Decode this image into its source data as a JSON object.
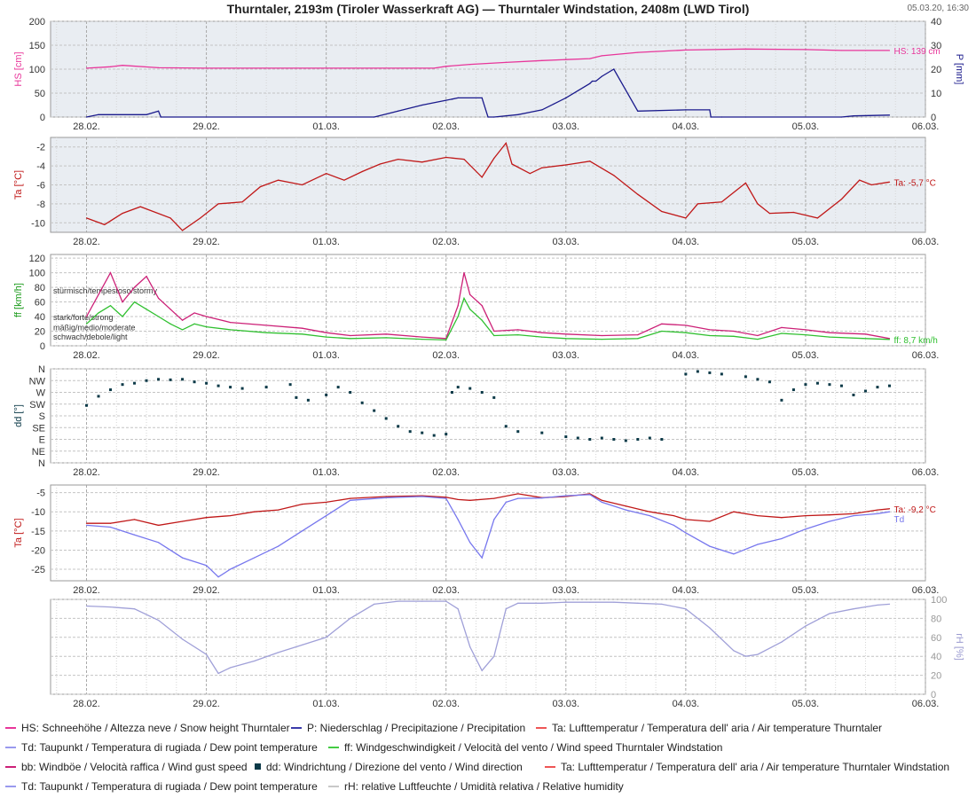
{
  "header": {
    "title": "Thurntaler, 2193m (Tiroler Wasserkraft AG) — Thurntaler Windstation, 2408m (LWD Tirol)",
    "timestamp": "05.03.20, 16:30"
  },
  "colors": {
    "hs": "#e8359a",
    "p": "#1a1a8c",
    "ta": "#c01818",
    "td": "#7777ee",
    "ff": "#30c030",
    "bb": "#cc2077",
    "dd": "#0c3a48",
    "rh": "#a0a0d8",
    "panel_bg": "#e9edf2",
    "grid": "#b8b8b8",
    "border": "#999999"
  },
  "x_axis": {
    "ticks": [
      "28.02.",
      "29.02.",
      "01.03.",
      "02.03.",
      "03.03.",
      "04.03.",
      "05.03.",
      "06.03."
    ]
  },
  "legend": [
    {
      "label": "HS: Schneehöhe / Altezza neve / Snow height  Thurntaler",
      "color": "#e8359a",
      "marker": "line"
    },
    {
      "label": "P: Niederschlag / Precipitazione / Precipitation",
      "color": "#3a3aaa",
      "marker": "line"
    },
    {
      "label": "Ta: Lufttemperatur / Temperatura dell' aria / Air temperature  Thurntaler",
      "color": "#ee5555",
      "marker": "line"
    },
    {
      "label": "Td: Taupunkt / Temperatura di rugiada / Dew point temperature",
      "color": "#9999ee",
      "marker": "line"
    },
    {
      "label": "ff: Windgeschwindigkeit / Velocità del vento / Wind speed  Thurntaler Windstation",
      "color": "#44cc44",
      "marker": "line"
    },
    {
      "label": "bb: Windböe / Velocità raffica / Wind gust speed",
      "color": "#cc2077",
      "marker": "line"
    },
    {
      "label": "dd: Windrichtung / Direzione del vento / Wind direction",
      "color": "#0c3a48",
      "marker": "square"
    },
    {
      "label": "Ta: Lufttemperatur / Temperatura dell' aria / Air temperature  Thurntaler Windstation",
      "color": "#ee5555",
      "marker": "line"
    },
    {
      "label": "Td: Taupunkt / Temperatura di rugiada / Dew point temperature",
      "color": "#9999ee",
      "marker": "line"
    },
    {
      "label": "rH: relative Luftfeuchte / Umidità relativa / Relative humidity",
      "color": "#c8c8c8",
      "marker": "line"
    }
  ],
  "chart_data": [
    {
      "type": "line",
      "panel": "snow-precip",
      "ylabel": "HS [cm]",
      "ylim": [
        0,
        200
      ],
      "yticks": [
        0,
        50,
        100,
        150,
        200
      ],
      "y2label": "P [mm]",
      "y2lim": [
        0,
        40
      ],
      "y2ticks": [
        0,
        10,
        20,
        30,
        40
      ],
      "series": [
        {
          "name": "HS",
          "axis": "left",
          "end_label": "HS: 139 cm",
          "x": [
            0.0,
            0.2,
            0.3,
            0.6,
            1.0,
            1.5,
            2.0,
            2.5,
            2.9,
            3.0,
            3.2,
            3.5,
            3.8,
            4.0,
            4.2,
            4.3,
            4.6,
            5.0,
            5.5,
            6.0,
            6.3,
            6.7
          ],
          "y": [
            102,
            105,
            108,
            103,
            102,
            102,
            102,
            102,
            102,
            106,
            110,
            114,
            118,
            120,
            122,
            128,
            135,
            140,
            142,
            141,
            139,
            139
          ]
        },
        {
          "name": "P",
          "axis": "right",
          "x": [
            0.0,
            0.1,
            0.5,
            0.6,
            0.62,
            1.0,
            2.4,
            2.6,
            2.8,
            3.0,
            3.05,
            3.1,
            3.3,
            3.35,
            3.4,
            3.6,
            3.8,
            3.9,
            4.0,
            4.1,
            4.2,
            4.22,
            4.25,
            4.3,
            4.4,
            4.6,
            5.0,
            5.2,
            5.21,
            5.3,
            5.5,
            6.3,
            6.4,
            6.7
          ],
          "y": [
            0,
            1,
            1,
            2.5,
            0,
            0,
            0,
            2.5,
            5,
            7,
            7.5,
            8,
            8,
            0,
            0,
            1,
            3,
            5.5,
            8,
            11,
            14,
            15,
            15,
            17,
            20,
            2.5,
            3,
            3,
            0,
            0,
            0,
            0,
            0.5,
            0.8
          ]
        }
      ]
    },
    {
      "type": "line",
      "panel": "temperature-thurntaler",
      "ylabel": "Ta [°C]",
      "ylim": [
        -11,
        -1
      ],
      "yticks": [
        -10,
        -8,
        -6,
        -4,
        -2
      ],
      "series": [
        {
          "name": "Ta",
          "end_label": "Ta: -5,7 °C",
          "x": [
            0.0,
            0.15,
            0.3,
            0.45,
            0.7,
            0.8,
            0.95,
            1.1,
            1.3,
            1.45,
            1.6,
            1.8,
            2.0,
            2.15,
            2.3,
            2.45,
            2.6,
            2.8,
            3.0,
            3.15,
            3.3,
            3.4,
            3.5,
            3.55,
            3.7,
            3.8,
            4.0,
            4.2,
            4.4,
            4.6,
            4.8,
            5.0,
            5.1,
            5.3,
            5.5,
            5.6,
            5.7,
            5.9,
            6.1,
            6.3,
            6.45,
            6.55,
            6.7
          ],
          "y": [
            -9.5,
            -10.2,
            -9.0,
            -8.3,
            -9.5,
            -10.8,
            -9.5,
            -8.0,
            -7.8,
            -6.2,
            -5.5,
            -6.0,
            -4.8,
            -5.5,
            -4.6,
            -3.8,
            -3.3,
            -3.6,
            -3.1,
            -3.3,
            -5.2,
            -3.2,
            -1.6,
            -3.8,
            -4.8,
            -4.2,
            -3.9,
            -3.5,
            -5.0,
            -7.0,
            -8.8,
            -9.5,
            -8.0,
            -7.8,
            -5.8,
            -8.0,
            -9.0,
            -8.9,
            -9.5,
            -7.5,
            -5.5,
            -6.0,
            -5.7
          ]
        }
      ]
    },
    {
      "type": "line",
      "panel": "wind-speed",
      "ylabel": "ff [km/h]",
      "ylim": [
        0,
        125
      ],
      "yticks": [
        0,
        20,
        40,
        60,
        80,
        100,
        120
      ],
      "annotations": [
        {
          "text": "stürmisch/tempestoso/stormy",
          "y": 75
        },
        {
          "text": "stark/forte/strong",
          "y": 39
        },
        {
          "text": "mäßig/medio/moderate",
          "y": 25
        },
        {
          "text": "schwach/debole/light",
          "y": 12
        }
      ],
      "series": [
        {
          "name": "bb",
          "x": [
            0.0,
            0.1,
            0.2,
            0.3,
            0.4,
            0.5,
            0.6,
            0.7,
            0.8,
            0.9,
            1.0,
            1.2,
            1.5,
            1.8,
            2.0,
            2.2,
            2.5,
            2.8,
            3.0,
            3.1,
            3.15,
            3.2,
            3.3,
            3.4,
            3.6,
            3.8,
            4.0,
            4.3,
            4.6,
            4.8,
            5.0,
            5.2,
            5.4,
            5.6,
            5.8,
            6.0,
            6.2,
            6.5,
            6.7
          ],
          "y": [
            40,
            70,
            100,
            60,
            80,
            95,
            65,
            50,
            35,
            45,
            40,
            32,
            28,
            24,
            18,
            14,
            16,
            12,
            10,
            55,
            100,
            70,
            55,
            20,
            22,
            18,
            16,
            14,
            15,
            30,
            28,
            22,
            20,
            14,
            25,
            22,
            18,
            16,
            10
          ]
        },
        {
          "name": "ff",
          "end_label": "ff: 8,7 km/h",
          "x": [
            0.0,
            0.1,
            0.2,
            0.3,
            0.4,
            0.5,
            0.6,
            0.7,
            0.8,
            0.9,
            1.0,
            1.2,
            1.5,
            1.8,
            2.0,
            2.2,
            2.5,
            2.8,
            3.0,
            3.1,
            3.15,
            3.2,
            3.3,
            3.4,
            3.6,
            3.8,
            4.0,
            4.3,
            4.6,
            4.8,
            5.0,
            5.2,
            5.4,
            5.6,
            5.8,
            6.0,
            6.2,
            6.5,
            6.7
          ],
          "y": [
            30,
            45,
            55,
            40,
            60,
            50,
            40,
            30,
            22,
            30,
            26,
            22,
            18,
            16,
            12,
            10,
            11,
            9,
            8,
            40,
            65,
            50,
            35,
            14,
            15,
            12,
            10,
            9,
            10,
            20,
            18,
            14,
            13,
            9,
            17,
            15,
            12,
            10,
            8.7
          ]
        }
      ]
    },
    {
      "type": "scatter",
      "panel": "wind-direction",
      "ylabel": "dd [°]",
      "ylim": [
        0,
        360
      ],
      "ytick_labels": [
        "N",
        "NE",
        "E",
        "SE",
        "S",
        "SW",
        "W",
        "NW",
        "N"
      ],
      "yticks": [
        0,
        45,
        90,
        135,
        180,
        225,
        270,
        315,
        360
      ],
      "series": [
        {
          "name": "dd",
          "x": [
            0.0,
            0.1,
            0.2,
            0.3,
            0.4,
            0.5,
            0.6,
            0.7,
            0.8,
            0.9,
            1.0,
            1.1,
            1.2,
            1.3,
            1.5,
            1.7,
            1.75,
            1.85,
            2.0,
            2.1,
            2.2,
            2.3,
            2.4,
            2.5,
            2.6,
            2.7,
            2.8,
            2.9,
            3.0,
            3.05,
            3.1,
            3.2,
            3.3,
            3.4,
            3.5,
            3.6,
            3.8,
            4.0,
            4.1,
            4.2,
            4.3,
            4.4,
            4.5,
            4.6,
            4.7,
            4.8,
            5.0,
            5.1,
            5.2,
            5.3,
            5.5,
            5.6,
            5.7,
            5.8,
            5.9,
            6.0,
            6.1,
            6.2,
            6.3,
            6.4,
            6.5,
            6.6,
            6.7
          ],
          "y": [
            220,
            255,
            280,
            300,
            305,
            315,
            320,
            318,
            320,
            310,
            305,
            295,
            290,
            285,
            290,
            300,
            250,
            240,
            260,
            290,
            270,
            230,
            200,
            170,
            140,
            120,
            115,
            105,
            110,
            270,
            290,
            285,
            270,
            250,
            140,
            120,
            115,
            100,
            95,
            90,
            95,
            90,
            85,
            90,
            95,
            90,
            340,
            350,
            345,
            340,
            330,
            320,
            310,
            240,
            280,
            300,
            305,
            300,
            295,
            260,
            275,
            290,
            295
          ]
        }
      ]
    },
    {
      "type": "line",
      "panel": "temperature-windstation",
      "ylabel": "Ta [°C]",
      "ylim": [
        -28,
        -3
      ],
      "yticks": [
        -25,
        -20,
        -15,
        -10,
        -5
      ],
      "series": [
        {
          "name": "Ta",
          "end_label": "Ta: -9,2 °C",
          "x": [
            0.0,
            0.2,
            0.4,
            0.6,
            0.8,
            1.0,
            1.2,
            1.4,
            1.6,
            1.8,
            2.0,
            2.2,
            2.5,
            2.8,
            3.0,
            3.1,
            3.2,
            3.4,
            3.6,
            3.8,
            4.0,
            4.2,
            4.3,
            4.5,
            4.7,
            4.9,
            5.0,
            5.2,
            5.4,
            5.6,
            5.8,
            6.0,
            6.2,
            6.4,
            6.6,
            6.7
          ],
          "y": [
            -13,
            -13,
            -12,
            -13.5,
            -12.5,
            -11.5,
            -11,
            -10,
            -9.5,
            -8,
            -7.5,
            -6.5,
            -6,
            -5.8,
            -6.2,
            -6.8,
            -7,
            -6.5,
            -5.3,
            -6.3,
            -6,
            -5.3,
            -7,
            -8.5,
            -10,
            -11,
            -12,
            -12.5,
            -10,
            -11,
            -11.5,
            -11,
            -10.8,
            -10.5,
            -9.5,
            -9.2
          ]
        },
        {
          "name": "Td",
          "end_label": "Td",
          "x": [
            0.0,
            0.2,
            0.4,
            0.6,
            0.8,
            1.0,
            1.1,
            1.2,
            1.4,
            1.6,
            1.8,
            2.0,
            2.2,
            2.5,
            2.8,
            3.0,
            3.1,
            3.2,
            3.3,
            3.4,
            3.5,
            3.6,
            3.8,
            4.0,
            4.2,
            4.3,
            4.5,
            4.7,
            4.9,
            5.0,
            5.2,
            5.4,
            5.6,
            5.8,
            6.0,
            6.2,
            6.4,
            6.6,
            6.7
          ],
          "y": [
            -13.5,
            -14,
            -16,
            -18,
            -22,
            -24,
            -27,
            -25,
            -22,
            -19,
            -15,
            -11,
            -7,
            -6.3,
            -6,
            -6.5,
            -12,
            -18,
            -22,
            -12,
            -7.5,
            -6.5,
            -6.4,
            -5.8,
            -5.5,
            -7.5,
            -9.5,
            -11,
            -13.5,
            -15.5,
            -19,
            -21,
            -18.5,
            -17,
            -14.5,
            -12.5,
            -11,
            -10.5,
            -10
          ]
        }
      ]
    },
    {
      "type": "line",
      "panel": "relative-humidity",
      "y2label": "rH [%]",
      "y2lim": [
        0,
        100
      ],
      "y2ticks": [
        0,
        20,
        40,
        60,
        80,
        100
      ],
      "series": [
        {
          "name": "rH",
          "x": [
            0.0,
            0.2,
            0.4,
            0.6,
            0.8,
            1.0,
            1.1,
            1.2,
            1.4,
            1.6,
            1.8,
            2.0,
            2.2,
            2.4,
            2.6,
            2.8,
            3.0,
            3.1,
            3.2,
            3.3,
            3.4,
            3.5,
            3.6,
            3.8,
            4.0,
            4.2,
            4.4,
            4.6,
            4.8,
            5.0,
            5.2,
            5.4,
            5.5,
            5.6,
            5.8,
            6.0,
            6.2,
            6.4,
            6.6,
            6.7
          ],
          "y": [
            93,
            92,
            90,
            78,
            58,
            42,
            22,
            28,
            35,
            44,
            52,
            60,
            80,
            95,
            98,
            98,
            98,
            90,
            50,
            25,
            40,
            90,
            96,
            96,
            97,
            97,
            97,
            96,
            95,
            90,
            70,
            46,
            40,
            42,
            55,
            72,
            85,
            90,
            94,
            95
          ]
        }
      ]
    }
  ]
}
